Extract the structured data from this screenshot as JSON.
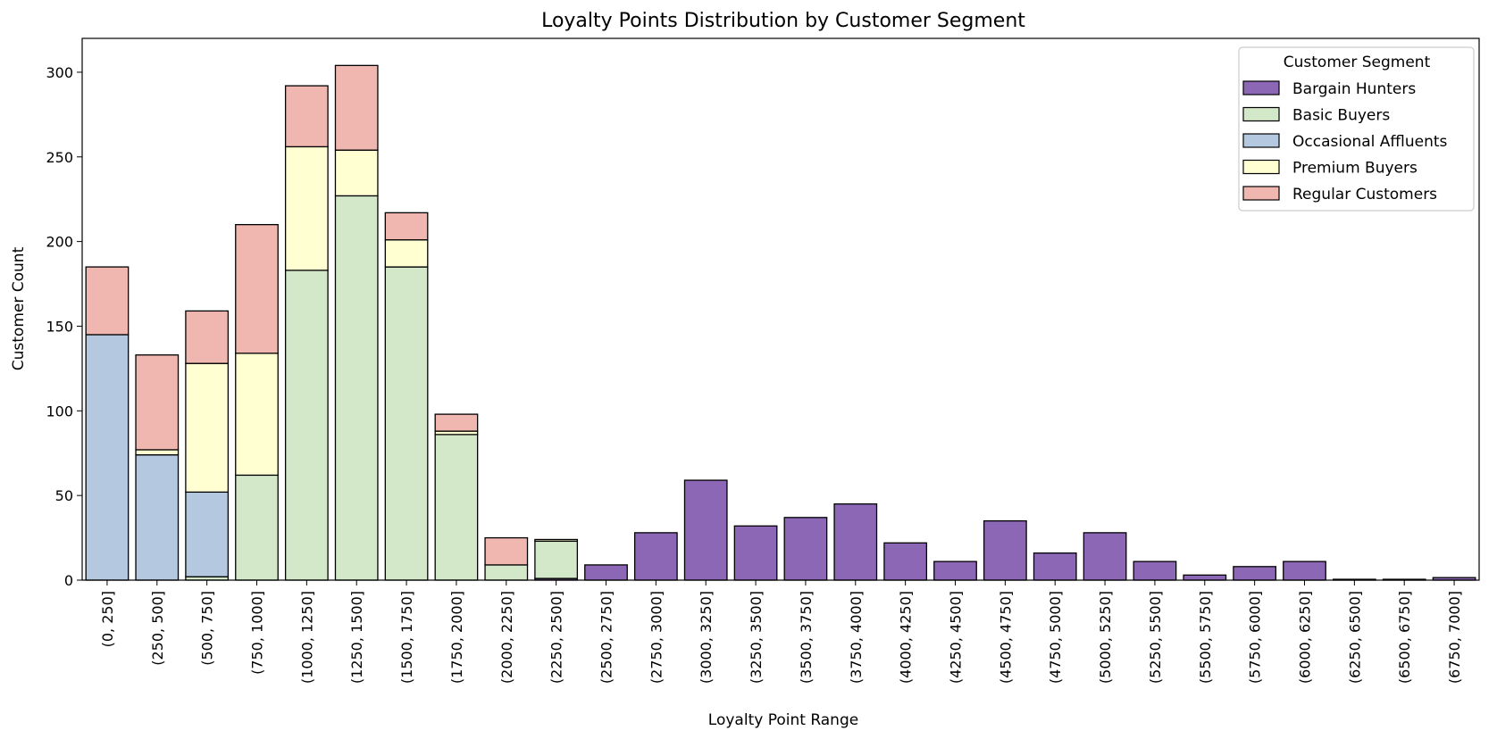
{
  "chart_data": {
    "type": "bar",
    "stacked": true,
    "title": "Loyalty Points Distribution by Customer Segment",
    "xlabel": "Loyalty Point Range",
    "ylabel": "Customer Count",
    "ylim": [
      0,
      320
    ],
    "yticks": [
      0,
      50,
      100,
      150,
      200,
      250,
      300
    ],
    "grid": false,
    "legend": {
      "title": "Customer Segment",
      "position": "top-right"
    },
    "categories": [
      "(0, 250]",
      "(250, 500]",
      "(500, 750]",
      "(750, 1000]",
      "(1000, 1250]",
      "(1250, 1500]",
      "(1500, 1750]",
      "(1750, 2000]",
      "(2000, 2250]",
      "(2250, 2500]",
      "(2500, 2750]",
      "(2750, 3000]",
      "(3000, 3250]",
      "(3250, 3500]",
      "(3500, 3750]",
      "(3750, 4000]",
      "(4000, 4250]",
      "(4250, 4500]",
      "(4500, 4750]",
      "(4750, 5000]",
      "(5000, 5250]",
      "(5250, 5500]",
      "(5500, 5750]",
      "(5750, 6000]",
      "(6000, 6250]",
      "(6250, 6500]",
      "(6500, 6750]",
      "(6750, 7000]"
    ],
    "series": [
      {
        "name": "Bargain Hunters",
        "color": "#8c67b6",
        "values": [
          0,
          0,
          0,
          0,
          0,
          0,
          0,
          0,
          0,
          1,
          9,
          28,
          59,
          32,
          37,
          45,
          22,
          11,
          35,
          16,
          28,
          11,
          3,
          8,
          11,
          0.5,
          0.5,
          1.5
        ]
      },
      {
        "name": "Basic Buyers",
        "color": "#d2e8c8",
        "values": [
          0,
          0,
          2,
          62,
          183,
          227,
          185,
          86,
          9,
          22,
          0,
          0,
          0,
          0,
          0,
          0,
          0,
          0,
          0,
          0,
          0,
          0,
          0,
          0,
          0,
          0,
          0,
          0
        ]
      },
      {
        "name": "Occasional Affluents",
        "color": "#b4c9e0",
        "values": [
          145,
          74,
          50,
          0,
          0,
          0,
          0,
          0,
          0,
          0,
          0,
          0,
          0,
          0,
          0,
          0,
          0,
          0,
          0,
          0,
          0,
          0,
          0,
          0,
          0,
          0,
          0,
          0
        ]
      },
      {
        "name": "Premium Buyers",
        "color": "#ffffd2",
        "values": [
          0,
          3,
          76,
          72,
          73,
          27,
          16,
          2,
          0,
          1,
          0,
          0,
          0,
          0,
          0,
          0,
          0,
          0,
          0,
          0,
          0,
          0,
          0,
          0,
          0,
          0,
          0,
          0
        ]
      },
      {
        "name": "Regular Customers",
        "color": "#f0b7b0",
        "values": [
          40,
          56,
          31,
          76,
          36,
          50,
          16,
          10,
          16,
          0,
          0,
          0,
          0,
          0,
          0,
          0,
          0,
          0,
          0,
          0,
          0,
          0,
          0,
          0,
          0,
          0,
          0,
          0
        ]
      }
    ]
  }
}
